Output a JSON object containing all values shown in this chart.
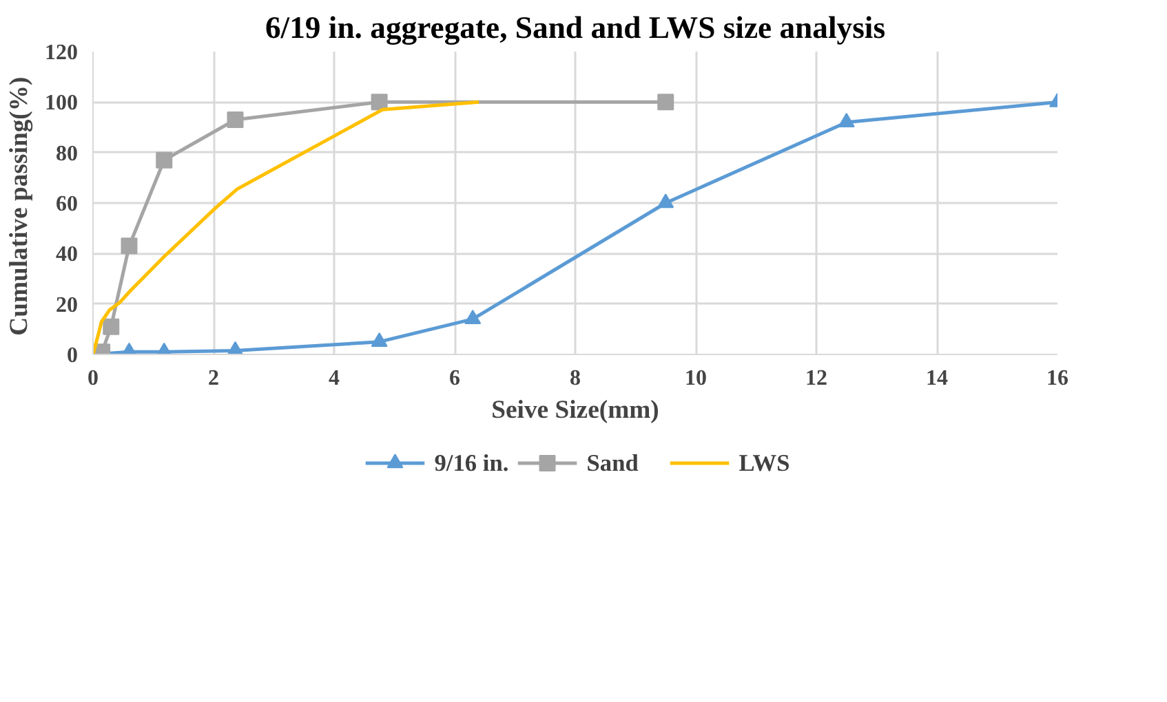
{
  "chart_data": {
    "type": "line",
    "title": "6/19 in. aggregate, Sand and LWS size analysis",
    "xlabel": "Seive Size(mm)",
    "ylabel": "Cumulative  passing(%)",
    "xlim": [
      0,
      16
    ],
    "ylim": [
      0,
      120
    ],
    "xticks": [
      0,
      2,
      4,
      6,
      8,
      10,
      12,
      14,
      16
    ],
    "yticks": [
      0,
      20,
      40,
      60,
      80,
      100,
      120
    ],
    "grid": true,
    "legend": "bottom",
    "series": [
      {
        "name": "9/16 in.",
        "color": "#5b9bd5",
        "marker": "triangle",
        "x": [
          0,
          0.6,
          1.18,
          2.36,
          4.75,
          6.3,
          9.5,
          12.5,
          16
        ],
        "values": [
          0,
          1,
          1,
          1.5,
          5,
          14,
          60,
          92,
          100
        ]
      },
      {
        "name": "Sand",
        "color": "#a5a5a5",
        "marker": "square",
        "x": [
          0.15,
          0.3,
          0.6,
          1.18,
          2.36,
          4.75,
          9.5
        ],
        "values": [
          1,
          11,
          43,
          77,
          93,
          100,
          100
        ]
      },
      {
        "name": "LWS",
        "color": "#ffc000",
        "marker": "none",
        "x": [
          0,
          0.1,
          0.14,
          0.2,
          0.27,
          0.44,
          0.63,
          0.86,
          1.19,
          2.03,
          2.39,
          4.8,
          6.4
        ],
        "values": [
          0,
          9,
          13,
          15,
          17.5,
          20.5,
          25.5,
          31,
          39,
          58,
          65.5,
          97,
          100
        ]
      }
    ]
  }
}
